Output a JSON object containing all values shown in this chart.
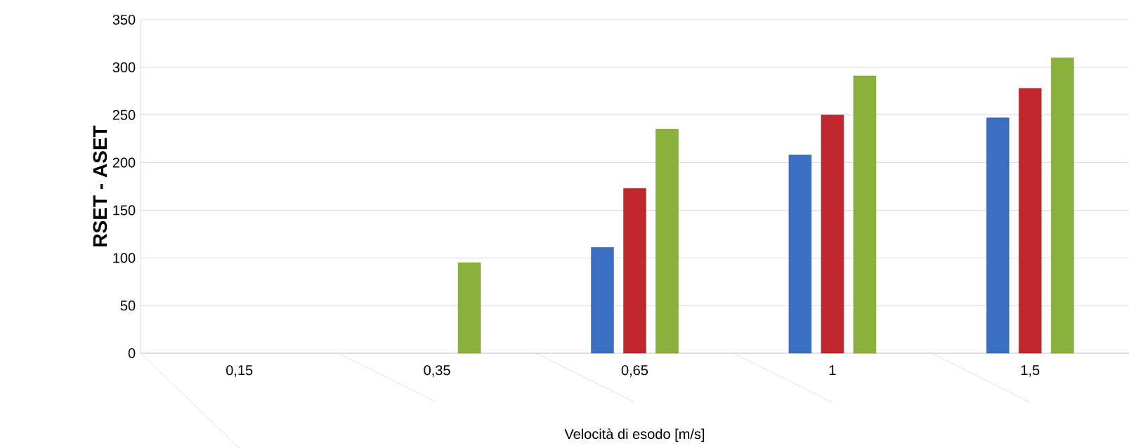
{
  "chart_data": {
    "type": "bar",
    "xlabel": "Velocità di esodo [m/s]",
    "ylabel": "RSET - ASET",
    "categories": [
      "0,15",
      "0,35",
      "0,65",
      "1",
      "1,5"
    ],
    "series": [
      {
        "color": "#3a6fc4",
        "values": [
          null,
          null,
          111,
          208,
          247
        ]
      },
      {
        "color": "#c0282d",
        "values": [
          null,
          null,
          173,
          250,
          278
        ]
      },
      {
        "color": "#8ab23a",
        "values": [
          null,
          95,
          235,
          291,
          310
        ]
      }
    ],
    "ylim": [
      0,
      350
    ],
    "yticks": [
      0,
      50,
      100,
      150,
      200,
      250,
      300,
      350
    ],
    "grid": "y"
  }
}
